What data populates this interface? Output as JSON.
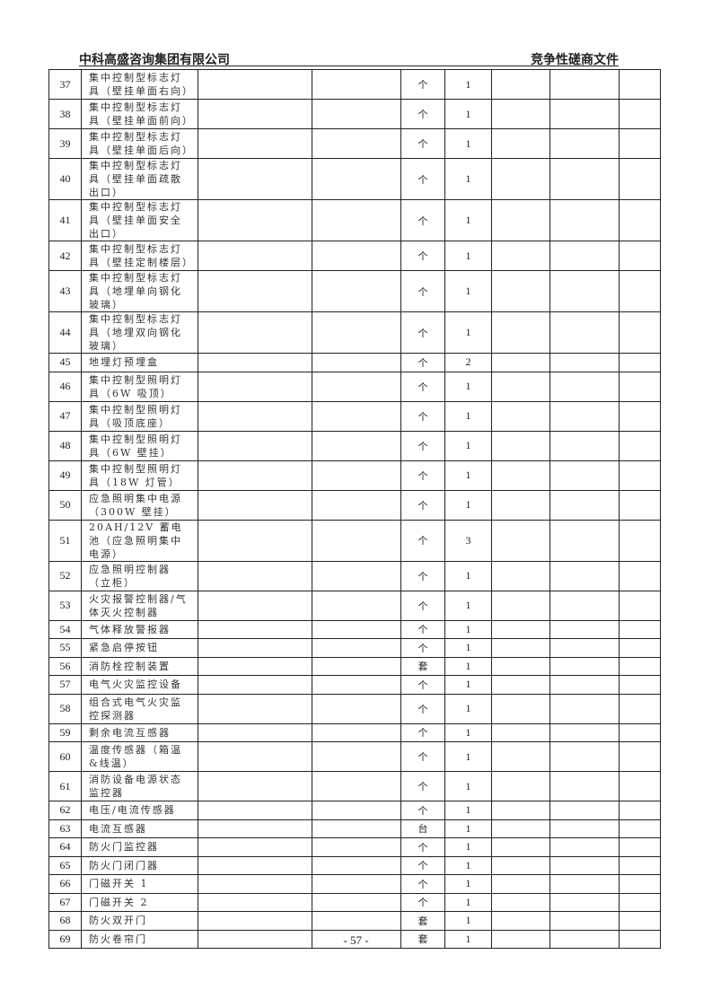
{
  "header": {
    "company": "中科高盛咨询集团有限公司",
    "doc_type": "竞争性磋商文件"
  },
  "rows": [
    {
      "no": "37",
      "name": "集中控制型标志灯具（壁挂单面右向）",
      "unit": "个",
      "qty": "1"
    },
    {
      "no": "38",
      "name": "集中控制型标志灯具（壁挂单面前向）",
      "unit": "个",
      "qty": "1"
    },
    {
      "no": "39",
      "name": "集中控制型标志灯具（壁挂单面后向）",
      "unit": "个",
      "qty": "1"
    },
    {
      "no": "40",
      "name": "集中控制型标志灯具（壁挂单面疏散出口）",
      "unit": "个",
      "qty": "1"
    },
    {
      "no": "41",
      "name": "集中控制型标志灯具（壁挂单面安全出口）",
      "unit": "个",
      "qty": "1"
    },
    {
      "no": "42",
      "name": "集中控制型标志灯具（壁挂定制楼层）",
      "unit": "个",
      "qty": "1"
    },
    {
      "no": "43",
      "name": "集中控制型标志灯具（地埋单向钢化玻璃）",
      "unit": "个",
      "qty": "1"
    },
    {
      "no": "44",
      "name": "集中控制型标志灯具（地埋双向钢化玻璃）",
      "unit": "个",
      "qty": "1"
    },
    {
      "no": "45",
      "name": "地埋灯预埋盒",
      "unit": "个",
      "qty": "2"
    },
    {
      "no": "46",
      "name": "集中控制型照明灯具（6W 吸顶）",
      "unit": "个",
      "qty": "1"
    },
    {
      "no": "47",
      "name": "集中控制型照明灯具（吸顶底座）",
      "unit": "个",
      "qty": "1"
    },
    {
      "no": "48",
      "name": "集中控制型照明灯具（6W 壁挂）",
      "unit": "个",
      "qty": "1"
    },
    {
      "no": "49",
      "name": "集中控制型照明灯具（18W 灯管）",
      "unit": "个",
      "qty": "1"
    },
    {
      "no": "50",
      "name": "应急照明集中电源（300W 壁挂）",
      "unit": "个",
      "qty": "1"
    },
    {
      "no": "51",
      "name": "20AH/12V 蓄电池（应急照明集中电源）",
      "unit": "个",
      "qty": "3"
    },
    {
      "no": "52",
      "name": "应急照明控制器（立柜）",
      "unit": "个",
      "qty": "1"
    },
    {
      "no": "53",
      "name": "火灾报警控制器/气体灭火控制器",
      "unit": "个",
      "qty": "1"
    },
    {
      "no": "54",
      "name": "气体释放警报器",
      "unit": "个",
      "qty": "1"
    },
    {
      "no": "55",
      "name": "紧急启停按钮",
      "unit": "个",
      "qty": "1"
    },
    {
      "no": "56",
      "name": "消防栓控制装置",
      "unit": "套",
      "qty": "1"
    },
    {
      "no": "57",
      "name": "电气火灾监控设备",
      "unit": "个",
      "qty": "1"
    },
    {
      "no": "58",
      "name": "组合式电气火灾监控探测器",
      "unit": "个",
      "qty": "1"
    },
    {
      "no": "59",
      "name": "剩余电流互感器",
      "unit": "个",
      "qty": "1"
    },
    {
      "no": "60",
      "name": "温度传感器（箱温&线温）",
      "unit": "个",
      "qty": "1"
    },
    {
      "no": "61",
      "name": "消防设备电源状态监控器",
      "unit": "个",
      "qty": "1"
    },
    {
      "no": "62",
      "name": "电压/电流传感器",
      "unit": "个",
      "qty": "1"
    },
    {
      "no": "63",
      "name": "电流互感器",
      "unit": "台",
      "qty": "1"
    },
    {
      "no": "64",
      "name": "防火门监控器",
      "unit": "个",
      "qty": "1"
    },
    {
      "no": "65",
      "name": "防火门闭门器",
      "unit": "个",
      "qty": "1"
    },
    {
      "no": "66",
      "name": "门磁开关 1",
      "unit": "个",
      "qty": "1"
    },
    {
      "no": "67",
      "name": "门磁开关 2",
      "unit": "个",
      "qty": "1"
    },
    {
      "no": "68",
      "name": "防火双开门",
      "unit": "套",
      "qty": "1"
    },
    {
      "no": "69",
      "name": "防火卷帘门",
      "unit": "套",
      "qty": "1"
    }
  ],
  "footer": {
    "page": "- 57 -"
  }
}
